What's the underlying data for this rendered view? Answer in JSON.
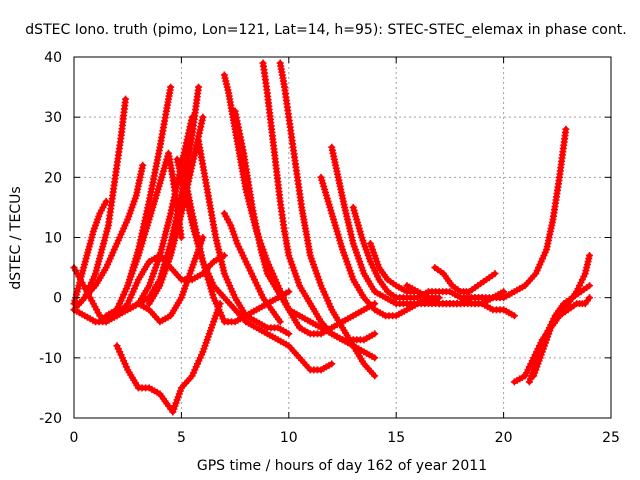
{
  "chart_data": {
    "type": "scatter",
    "title": "dSTEC Iono. truth (pimo, Lon=121, Lat=14, h=95): STEC-STEC_elemax in phase cont.",
    "xlabel": "GPS time / hours of day 162 of year 2011",
    "ylabel": "dSTEC  / TECUs",
    "xlim": [
      0,
      25
    ],
    "ylim": [
      -20,
      40
    ],
    "xticks": [
      "0",
      "5",
      "10",
      "15",
      "20",
      "25"
    ],
    "yticks": [
      "-20",
      "-10",
      "0",
      "10",
      "20",
      "30",
      "40"
    ],
    "grid": true,
    "marker": "+",
    "colors": {
      "series": "#ff0000",
      "grid": "#a0a0a0",
      "axis": "#000000"
    },
    "series": [
      {
        "x": [
          0.0,
          0.5,
          1.0,
          1.3,
          1.6,
          1.8,
          2.0,
          2.2,
          2.4
        ],
        "y": [
          -2,
          0,
          4,
          8,
          12,
          17,
          22,
          27,
          33
        ]
      },
      {
        "x": [
          0.0,
          0.5,
          1.0,
          1.5,
          2.0,
          2.5,
          2.9,
          3.2
        ],
        "y": [
          -2,
          0,
          2,
          5,
          9,
          13,
          17,
          22
        ]
      },
      {
        "x": [
          0.0,
          0.3,
          0.6,
          0.9,
          1.2,
          1.5
        ],
        "y": [
          -1,
          3,
          7,
          11,
          14,
          16
        ]
      },
      {
        "x": [
          0.0,
          0.3,
          0.6,
          0.9,
          1.2,
          1.5,
          2.0,
          2.5,
          3.0,
          3.5,
          4.0,
          4.4,
          4.6,
          4.8,
          5.0
        ],
        "y": [
          5,
          3,
          1,
          -1,
          -3,
          -4,
          -2,
          2,
          7,
          13,
          19,
          24,
          20,
          15,
          10
        ]
      },
      {
        "x": [
          1.5,
          2.0,
          2.5,
          3.0,
          3.5,
          4.0,
          4.3,
          4.5
        ],
        "y": [
          -3,
          -2,
          2,
          8,
          16,
          25,
          31,
          35
        ]
      },
      {
        "x": [
          2.0,
          2.5,
          3.0,
          3.5,
          4.0,
          4.5,
          5.0,
          5.5
        ],
        "y": [
          -2,
          -2,
          -1,
          2,
          7,
          14,
          22,
          30
        ]
      },
      {
        "x": [
          3.5,
          4.0,
          4.5,
          5.0,
          5.5,
          6.0
        ],
        "y": [
          -1,
          2,
          7,
          14,
          22,
          30
        ]
      },
      {
        "x": [
          3.0,
          3.5,
          4.0,
          4.5,
          5.0,
          5.5,
          5.8
        ],
        "y": [
          -1,
          0,
          3,
          9,
          17,
          27,
          35
        ]
      },
      {
        "x": [
          0.0,
          0.5,
          1.0,
          1.5,
          2.0,
          2.5,
          3.0,
          3.5,
          4.0,
          4.5,
          5.0,
          5.5,
          6.0
        ],
        "y": [
          -2,
          -3,
          -4,
          -4,
          -3,
          -2,
          -1,
          -2,
          -4,
          -3,
          0,
          5,
          10
        ]
      },
      {
        "x": [
          2.0,
          2.5,
          3.0,
          3.5,
          4.0,
          4.5,
          5.0,
          5.5,
          6.0,
          6.5,
          7.0
        ],
        "y": [
          -3,
          -1,
          3,
          6,
          7,
          5,
          3,
          3,
          4,
          6,
          7
        ]
      },
      {
        "x": [
          2.0,
          2.5,
          3.0,
          3.5,
          4.0,
          4.4,
          4.6,
          4.8,
          5.0,
          5.5,
          6.0,
          6.5,
          6.8
        ],
        "y": [
          -8,
          -12,
          -15,
          -15,
          -16,
          -18,
          -19,
          -17,
          -15,
          -13,
          -9,
          -4,
          -1
        ]
      },
      {
        "x": [
          5.8,
          6.2,
          6.6,
          7.0,
          7.5,
          8.0,
          8.5,
          9.0,
          9.5,
          10.0
        ],
        "y": [
          26,
          18,
          10,
          4,
          0,
          -3,
          -4,
          -5,
          -5,
          -6
        ]
      },
      {
        "x": [
          5.0,
          5.5,
          6.0,
          6.5,
          7.0,
          7.5,
          8.0,
          8.5,
          9.0,
          9.5,
          10.0
        ],
        "y": [
          23,
          14,
          6,
          0,
          -4,
          -4,
          -3,
          -2,
          -1,
          0,
          1
        ]
      },
      {
        "x": [
          4.8,
          5.2,
          5.6,
          6.0,
          6.5,
          7.0,
          7.5,
          8.0,
          8.5,
          9.0,
          9.5,
          10.0,
          10.5,
          11.0,
          11.5,
          12.0
        ],
        "y": [
          23,
          17,
          11,
          6,
          2,
          0,
          -2,
          -4,
          -5,
          -6,
          -7,
          -8,
          -10,
          -12,
          -12,
          -11
        ]
      },
      {
        "x": [
          7.0,
          7.3,
          7.6,
          8.0,
          8.4,
          8.8,
          9.2,
          9.6
        ],
        "y": [
          14,
          12,
          9,
          6,
          3,
          0,
          -2,
          -4
        ]
      },
      {
        "x": [
          7.0,
          7.2,
          7.4,
          7.6,
          7.8,
          8.0,
          8.5,
          9.0,
          9.5,
          10.0,
          10.5,
          11.0,
          11.5,
          12.0,
          12.5,
          13.0,
          13.5,
          14.0
        ],
        "y": [
          37,
          34,
          30,
          26,
          22,
          18,
          11,
          6,
          2,
          -2,
          -5,
          -6,
          -6,
          -5,
          -4,
          -3,
          -2,
          -1
        ]
      },
      {
        "x": [
          7.5,
          7.9,
          8.3,
          8.7,
          9.0,
          9.5,
          10.0,
          10.5,
          11.0,
          11.5,
          12.0,
          12.5,
          13.0,
          13.5,
          14.0
        ],
        "y": [
          31,
          24,
          15,
          8,
          4,
          1,
          -2,
          -3,
          -4,
          -5,
          -6,
          -7,
          -7,
          -7,
          -6
        ]
      },
      {
        "x": [
          8.8,
          9.0,
          9.2,
          9.4,
          9.6,
          9.8,
          10.0,
          10.5,
          11.0,
          11.5,
          12.0,
          12.5,
          13.0,
          13.5,
          14.0
        ],
        "y": [
          39,
          34,
          28,
          22,
          16,
          11,
          7,
          2,
          -1,
          -4,
          -6,
          -7,
          -8,
          -9,
          -10
        ]
      },
      {
        "x": [
          9.6,
          9.8,
          10.0,
          10.2,
          10.4,
          10.6,
          10.8,
          11.0,
          11.5,
          12.0,
          12.5,
          13.0,
          13.5,
          14.0
        ],
        "y": [
          39,
          35,
          30,
          25,
          20,
          15,
          11,
          7,
          2,
          -2,
          -5,
          -8,
          -11,
          -13
        ]
      },
      {
        "x": [
          11.5,
          12.0,
          12.5,
          13.0,
          13.5,
          14.0,
          14.5,
          15.0,
          15.5,
          16.0,
          16.5,
          17.0
        ],
        "y": [
          20,
          14,
          8,
          3,
          0,
          -2,
          -3,
          -3,
          -2,
          -1,
          0,
          0
        ]
      },
      {
        "x": [
          12.0,
          12.3,
          12.6,
          13.0,
          13.5,
          14.0,
          14.5,
          15.0,
          15.5,
          16.0,
          16.5,
          17.0,
          17.5,
          18.0
        ],
        "y": [
          25,
          20,
          15,
          9,
          4,
          1,
          0,
          -1,
          -1,
          -1,
          -1,
          -1,
          -1,
          -1
        ]
      },
      {
        "x": [
          13.0,
          13.4,
          13.8,
          14.2,
          14.6,
          15.0,
          15.5,
          16.0,
          16.5,
          17.0,
          17.5,
          18.0,
          18.5,
          19.0
        ],
        "y": [
          15,
          10,
          6,
          3,
          1,
          0,
          0,
          0,
          1,
          1,
          1,
          0,
          0,
          0
        ]
      },
      {
        "x": [
          13.8,
          14.2,
          14.6,
          15.0,
          15.5,
          16.0,
          16.5,
          17.0,
          17.5,
          18.0,
          18.5,
          19.0,
          19.5,
          20.0,
          20.5
        ],
        "y": [
          9,
          5,
          3,
          2,
          1,
          1,
          0,
          -1,
          -1,
          -1,
          -1,
          -1,
          -2,
          -2,
          -3
        ]
      },
      {
        "x": [
          15.5,
          16.0,
          16.5,
          17.0,
          17.5,
          18.0,
          18.5,
          19.0,
          19.5,
          20.0
        ],
        "y": [
          2,
          1,
          0,
          -1,
          -1,
          -1,
          0,
          0,
          0,
          1
        ]
      },
      {
        "x": [
          16.8,
          17.2,
          17.6,
          18.0,
          18.4,
          18.8,
          19.2,
          19.6
        ],
        "y": [
          5,
          4,
          2,
          1,
          1,
          2,
          3,
          4
        ]
      },
      {
        "x": [
          18.0,
          18.5,
          19.0,
          19.5,
          20.0,
          20.5,
          21.0,
          21.5,
          22.0,
          22.3,
          22.6,
          22.9
        ],
        "y": [
          0,
          -1,
          -1,
          0,
          0,
          1,
          2,
          4,
          8,
          13,
          20,
          28
        ]
      },
      {
        "x": [
          20.5,
          21.0,
          21.4,
          21.8,
          22.2,
          22.6,
          23.0,
          23.4,
          23.8,
          24.0
        ],
        "y": [
          -14,
          -13,
          -10,
          -7,
          -5,
          -3,
          -1,
          1,
          4,
          7
        ]
      },
      {
        "x": [
          21.2,
          21.6,
          22.0,
          22.4,
          22.8,
          23.2,
          23.6,
          24.0
        ],
        "y": [
          -14,
          -10,
          -6,
          -3,
          -1,
          0,
          1,
          2
        ]
      },
      {
        "x": [
          21.4,
          21.8,
          22.2,
          22.6,
          23.0,
          23.4,
          23.8,
          24.0
        ],
        "y": [
          -13,
          -9,
          -5,
          -3,
          -2,
          -1,
          -1,
          0
        ]
      }
    ]
  }
}
